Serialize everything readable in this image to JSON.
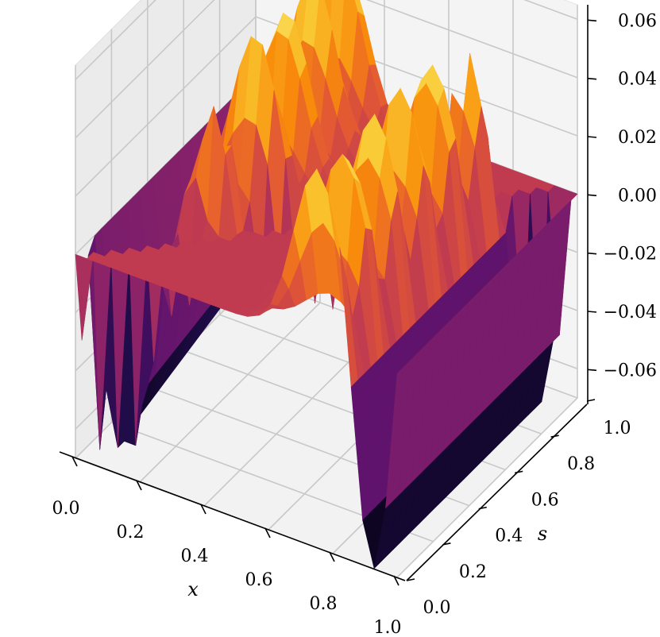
{
  "chart_data": {
    "type": "surface",
    "title": "",
    "xlabel": "x",
    "ylabel": "s",
    "zlabel": "",
    "x_ticks": [
      "0.0",
      "0.2",
      "0.4",
      "0.6",
      "0.8",
      "1.0"
    ],
    "y_ticks": [
      "0.0",
      "0.2",
      "0.4",
      "0.6",
      "0.8",
      "1.0"
    ],
    "z_ticks": [
      "0.06",
      "0.04",
      "0.02",
      "0.00",
      "−0.02",
      "−0.04",
      "−0.06"
    ],
    "xlim": [
      0,
      1
    ],
    "ylim": [
      0,
      1
    ],
    "zlim": [
      -0.07,
      0.065
    ],
    "colormap": "inferno",
    "grid": true,
    "surface_peaks": [
      {
        "region": "x<s",
        "max": 0.06,
        "min": -0.07
      },
      {
        "region": "x>s",
        "max": 0.06,
        "min": -0.07
      }
    ],
    "flat_value": 0.0
  }
}
